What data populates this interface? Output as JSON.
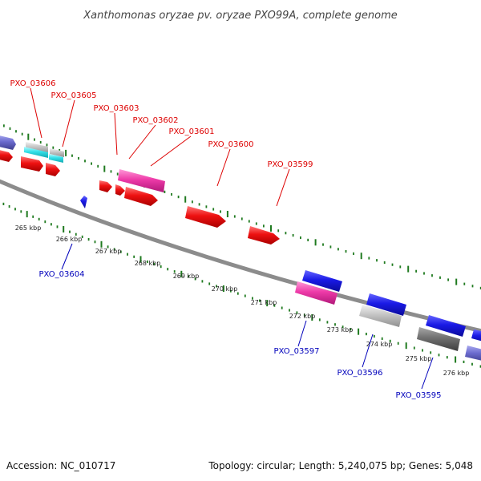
{
  "header": {
    "title": "Xanthomonas oryzae pv. oryzae PXO99A, complete genome"
  },
  "footer": {
    "accession": "Accession: NC_010717",
    "summary": "Topology: circular; Length: 5,240,075 bp; Genes: 5,048"
  },
  "colors": {
    "backbone": "#8c8c8c",
    "tick": "#1f7a1f",
    "forward_label": "#dd0000",
    "reverse_label": "#0000bb",
    "cds": "#ee1111",
    "cds_alt": "#ff4db8",
    "rrna": "#33e0e8",
    "blue": "#1a1ae6",
    "slate": "#6b6bcf",
    "gray": "#b8b8b8",
    "darkgray": "#6e6e6e"
  },
  "scale": {
    "ticks": [
      "265 kbp",
      "266 kbp",
      "267 kbp",
      "268 kbp",
      "269 kbp",
      "270 kbp",
      "271 kbp",
      "272 kbp",
      "273 kbp",
      "274 kbp",
      "275 kbp",
      "276 kbp"
    ]
  },
  "genes": {
    "forward": [
      {
        "label": "PXO_03606"
      },
      {
        "label": "PXO_03605"
      },
      {
        "label": "PXO_03603"
      },
      {
        "label": "PXO_03602"
      },
      {
        "label": "PXO_03601"
      },
      {
        "label": "PXO_03600"
      },
      {
        "label": "PXO_03599"
      }
    ],
    "reverse": [
      {
        "label": "PXO_03604"
      },
      {
        "label": "PXO_03597"
      },
      {
        "label": "PXO_03596"
      },
      {
        "label": "PXO_03595"
      }
    ]
  }
}
